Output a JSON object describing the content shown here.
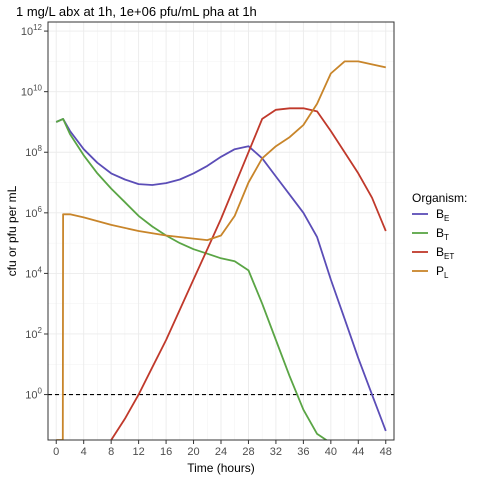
{
  "chart_data": {
    "type": "line",
    "title": "1 mg/L abx at 1h, 1e+06 pfu/mL pha at 1h",
    "xlabel": "Time (hours)",
    "ylabel": "cfu or pfu per mL",
    "xlim": [
      -1.2,
      49.2
    ],
    "ylim_log10": [
      -1.5,
      12.3
    ],
    "y_scale": "log10",
    "x_ticks": [
      0,
      4,
      8,
      12,
      16,
      20,
      24,
      28,
      32,
      36,
      40,
      44,
      48
    ],
    "y_ticks": [
      {
        "exp": 0,
        "base": "10",
        "sup": "0"
      },
      {
        "exp": 2,
        "base": "10",
        "sup": "2"
      },
      {
        "exp": 4,
        "base": "10",
        "sup": "4"
      },
      {
        "exp": 6,
        "base": "10",
        "sup": "6"
      },
      {
        "exp": 8,
        "base": "10",
        "sup": "8"
      },
      {
        "exp": 10,
        "base": "10",
        "sup": "10"
      },
      {
        "exp": 12,
        "base": "10",
        "sup": "12"
      }
    ],
    "threshold_y_log10": 0,
    "grid": true,
    "legend_placement": "right",
    "legend_title": "Organism:",
    "series": [
      {
        "name": "B_E",
        "label_main": "B",
        "label_sub": "E",
        "color": "#5b4db7",
        "x": [
          0,
          1,
          2,
          4,
          6,
          8,
          10,
          12,
          14,
          16,
          18,
          20,
          22,
          24,
          26,
          28,
          30,
          32,
          34,
          36,
          38,
          40,
          42,
          44,
          46,
          48
        ],
        "y_log10": [
          9.0,
          9.1,
          8.7,
          8.1,
          7.65,
          7.3,
          7.1,
          6.95,
          6.92,
          6.98,
          7.1,
          7.3,
          7.55,
          7.85,
          8.1,
          8.2,
          7.8,
          7.2,
          6.6,
          6.0,
          5.2,
          3.8,
          2.5,
          1.2,
          0.0,
          -1.2
        ]
      },
      {
        "name": "B_T",
        "label_main": "B",
        "label_sub": "T",
        "color": "#5aa545",
        "x": [
          0,
          1,
          2,
          4,
          6,
          8,
          10,
          12,
          14,
          16,
          18,
          20,
          22,
          24,
          26,
          28,
          30,
          32,
          34,
          36,
          38,
          40
        ],
        "y_log10": [
          9.0,
          9.1,
          8.6,
          7.9,
          7.3,
          6.8,
          6.35,
          5.9,
          5.55,
          5.25,
          5.0,
          4.8,
          4.65,
          4.5,
          4.4,
          4.1,
          3.0,
          1.8,
          0.6,
          -0.5,
          -1.3,
          -1.6
        ]
      },
      {
        "name": "B_ET",
        "label_main": "B",
        "label_sub": "ET",
        "color": "#c0392b",
        "x": [
          7,
          8,
          10,
          12,
          14,
          16,
          18,
          20,
          22,
          24,
          26,
          28,
          30,
          32,
          34,
          36,
          38,
          40,
          42,
          44,
          46,
          48
        ],
        "y_log10": [
          -1.8,
          -1.5,
          -0.8,
          0.0,
          0.9,
          1.8,
          2.8,
          3.8,
          4.8,
          5.8,
          6.9,
          8.0,
          9.1,
          9.4,
          9.45,
          9.45,
          9.35,
          8.7,
          8.0,
          7.3,
          6.5,
          5.4
        ]
      },
      {
        "name": "P_L",
        "label_main": "P",
        "label_sub": "L",
        "color": "#c8852a",
        "x": [
          0,
          0.95,
          1.0,
          1.05,
          2,
          4,
          8,
          12,
          16,
          20,
          22,
          24,
          26,
          28,
          30,
          32,
          34,
          36,
          38,
          40,
          42,
          44,
          46,
          48
        ],
        "y_log10": [
          -1.5,
          -1.5,
          5.95,
          5.95,
          5.95,
          5.85,
          5.6,
          5.4,
          5.25,
          5.15,
          5.1,
          5.25,
          5.9,
          7.0,
          7.8,
          8.2,
          8.5,
          8.9,
          9.6,
          10.6,
          11.0,
          11.0,
          10.9,
          10.8
        ]
      }
    ]
  }
}
